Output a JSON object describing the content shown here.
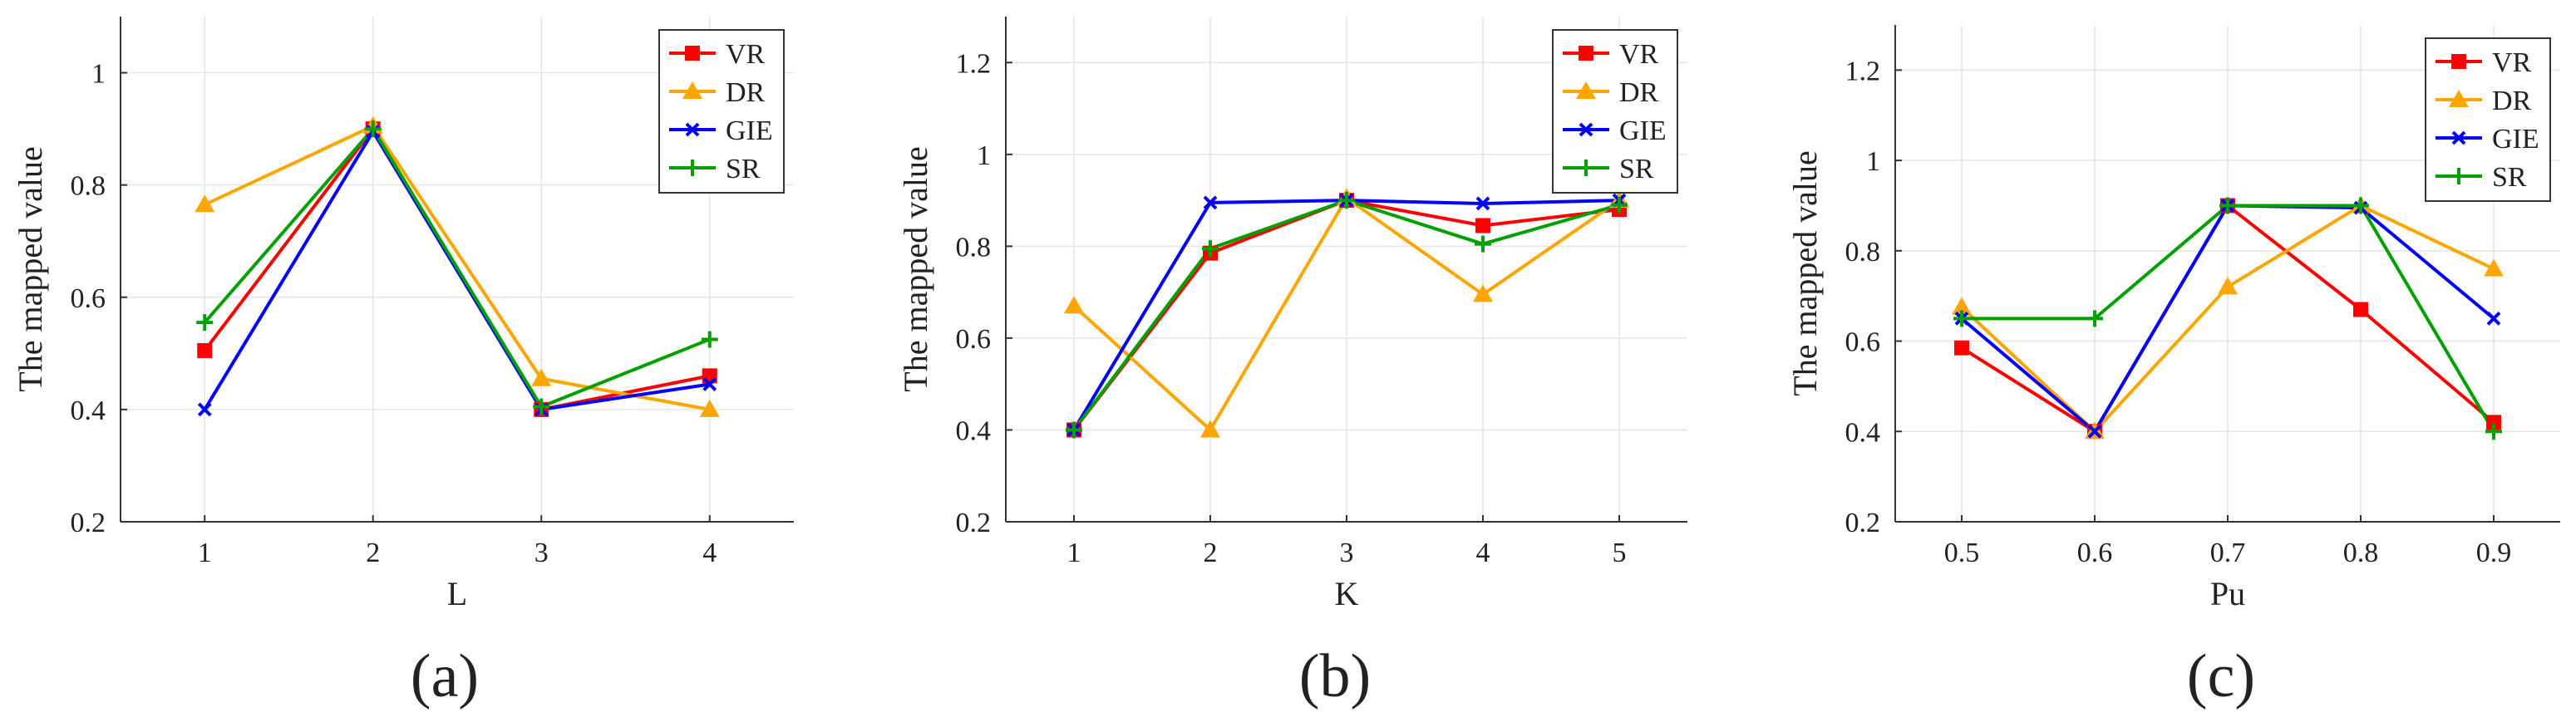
{
  "chart_data": [
    {
      "type": "line",
      "panel_label": "(a)",
      "xlabel": "L",
      "ylabel": "The mapped value",
      "xlim": [
        0.5,
        4.5
      ],
      "ylim": [
        0.2,
        1.1
      ],
      "x_ticks": [
        1,
        2,
        3,
        4
      ],
      "x_tick_labels": [
        "1",
        "2",
        "3",
        "4"
      ],
      "y_ticks": [
        0.2,
        0.4,
        0.6,
        0.8,
        1.0
      ],
      "y_tick_labels": [
        "0.2",
        "0.4",
        "0.6",
        "0.8",
        "1"
      ],
      "grid": true,
      "legend": "top-right",
      "x": [
        1,
        2,
        3,
        4
      ],
      "series": [
        {
          "name": "VR",
          "values": [
            0.505,
            0.9,
            0.4,
            0.46
          ]
        },
        {
          "name": "DR",
          "values": [
            0.765,
            0.905,
            0.455,
            0.4
          ]
        },
        {
          "name": "GIE",
          "values": [
            0.4,
            0.895,
            0.4,
            0.445
          ]
        },
        {
          "name": "SR",
          "values": [
            0.555,
            0.9,
            0.405,
            0.525
          ]
        }
      ]
    },
    {
      "type": "line",
      "panel_label": "(b)",
      "xlabel": "K",
      "ylabel": "The mapped value",
      "xlim": [
        0.5,
        5.5
      ],
      "ylim": [
        0.2,
        1.3
      ],
      "x_ticks": [
        1,
        2,
        3,
        4,
        5
      ],
      "x_tick_labels": [
        "1",
        "2",
        "3",
        "4",
        "5"
      ],
      "y_ticks": [
        0.2,
        0.4,
        0.6,
        0.8,
        1.0,
        1.2
      ],
      "y_tick_labels": [
        "0.2",
        "0.4",
        "0.6",
        "0.8",
        "1",
        "1.2"
      ],
      "grid": true,
      "legend": "top-right",
      "x": [
        1,
        2,
        3,
        4,
        5
      ],
      "series": [
        {
          "name": "VR",
          "values": [
            0.4,
            0.785,
            0.9,
            0.845,
            0.88
          ]
        },
        {
          "name": "DR",
          "values": [
            0.67,
            0.4,
            0.905,
            0.695,
            0.9
          ]
        },
        {
          "name": "GIE",
          "values": [
            0.4,
            0.895,
            0.9,
            0.893,
            0.9
          ]
        },
        {
          "name": "SR",
          "values": [
            0.4,
            0.795,
            0.9,
            0.805,
            0.89
          ]
        }
      ]
    },
    {
      "type": "line",
      "panel_label": "(c)",
      "xlabel": "Pu",
      "ylabel": "The mapped value",
      "xlim": [
        0.45,
        0.95
      ],
      "ylim": [
        0.2,
        1.3
      ],
      "x_ticks": [
        0.5,
        0.6,
        0.7,
        0.8,
        0.9
      ],
      "x_tick_labels": [
        "0.5",
        "0.6",
        "0.7",
        "0.8",
        "0.9"
      ],
      "y_ticks": [
        0.2,
        0.4,
        0.6,
        0.8,
        1.0,
        1.2
      ],
      "y_tick_labels": [
        "0.2",
        "0.4",
        "0.6",
        "0.8",
        "1",
        "1.2"
      ],
      "grid": true,
      "legend": "top-right",
      "x": [
        0.5,
        0.6,
        0.7,
        0.8,
        0.9
      ],
      "series": [
        {
          "name": "VR",
          "values": [
            0.585,
            0.4,
            0.9,
            0.67,
            0.42
          ]
        },
        {
          "name": "DR",
          "values": [
            0.675,
            0.4,
            0.72,
            0.9,
            0.76
          ]
        },
        {
          "name": "GIE",
          "values": [
            0.65,
            0.4,
            0.9,
            0.895,
            0.65
          ]
        },
        {
          "name": "SR",
          "values": [
            0.65,
            0.65,
            0.9,
            0.9,
            0.4
          ]
        }
      ]
    }
  ],
  "series_style": {
    "VR": {
      "color": "#ff0000",
      "marker": "square"
    },
    "DR": {
      "color": "#ffa500",
      "marker": "triangle"
    },
    "GIE": {
      "color": "#0000ff",
      "marker": "x"
    },
    "SR": {
      "color": "#00a000",
      "marker": "plus"
    }
  }
}
